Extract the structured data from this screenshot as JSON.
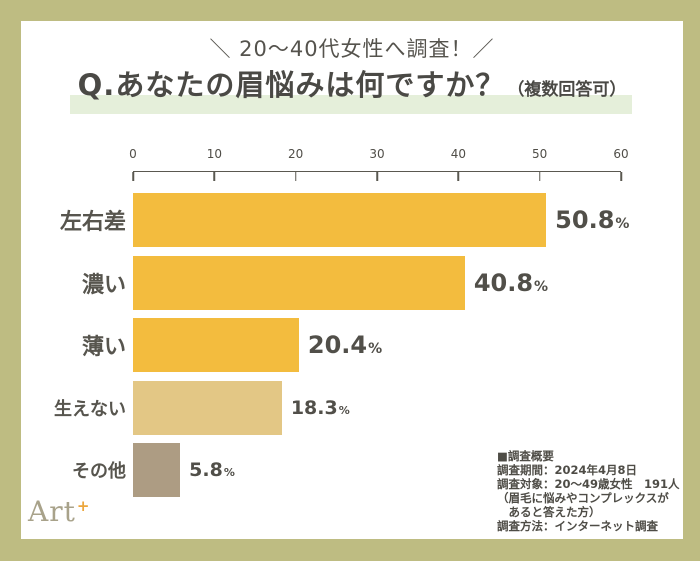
{
  "frame": {
    "border_color": "#bebc82",
    "card_bg": "#ffffff"
  },
  "header": {
    "subtitle": "＼ 20〜40代女性へ調査！／",
    "title": "Q.あなたの眉悩みは何ですか？",
    "title_note": "（複数回答可）",
    "highlight_color": "#e5efda"
  },
  "chart_data": {
    "type": "bar",
    "orientation": "horizontal",
    "title": "あなたの眉悩みは何ですか？（複数回答可）",
    "categories": [
      "左右差",
      "濃い",
      "薄い",
      "生えない",
      "その他"
    ],
    "values": [
      50.8,
      40.8,
      20.4,
      18.3,
      5.8
    ],
    "value_suffix": "%",
    "x_ticks": [
      0,
      10,
      20,
      30,
      40,
      50,
      60
    ],
    "xlim": [
      0,
      60
    ],
    "grid": false,
    "legend": "none",
    "bar_colors": [
      "#f3bc3e",
      "#f3bc3e",
      "#f3bc3e",
      "#e3c785",
      "#ad9c83"
    ],
    "emphasis": [
      true,
      true,
      true,
      false,
      false
    ]
  },
  "survey_notes": {
    "heading": "■調査概要",
    "lines": [
      "調査期間：2024年4月8日",
      "調査対象：20〜49歳女性　191人",
      "（眉毛に悩みやコンプレックスが",
      "　あると答えた方）",
      "調査方法：インターネット調査"
    ]
  },
  "logo": {
    "text": "Art",
    "plus": "+"
  }
}
